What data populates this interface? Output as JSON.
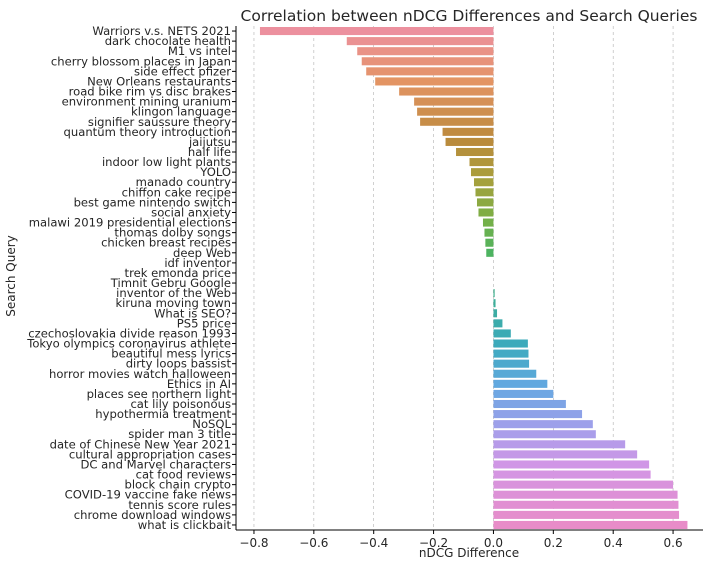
{
  "chart_data": {
    "type": "bar",
    "orientation": "horizontal",
    "title": "Correlation between nDCG Differences and Search Queries",
    "xlabel": "nDCG Difference",
    "ylabel": "Search Query",
    "xlim": [
      -0.86,
      0.7
    ],
    "xticks": [
      -0.8,
      -0.6,
      -0.4,
      -0.2,
      0.0,
      0.2,
      0.4,
      0.6
    ],
    "xtick_labels": [
      "−0.8",
      "−0.6",
      "−0.4",
      "−0.2",
      "0.0",
      "0.2",
      "0.4",
      "0.6"
    ],
    "grid": "x-dashed",
    "palette": "husl-gradient",
    "categories": [
      "Warriors v.s. NETS 2021",
      "dark chocolate health",
      "M1 vs intel",
      "cherry blossom places in Japan",
      "side effect pfizer",
      "New Orleans restaurants",
      "road bike rim vs disc brakes",
      "environment mining uranium",
      "klingon language",
      "signifier saussure theory",
      "quantum theory introduction",
      "jaijutsu",
      "half life",
      "indoor low light plants",
      "YOLO",
      "manado country",
      "chiffon cake recipe",
      "best game nintendo switch",
      "social anxiety",
      "malawi 2019 presidential elections",
      "thomas dolby songs",
      "chicken breast recipes",
      "deep Web",
      "idf inventor",
      "trek emonda price",
      "Timnit Gebru Google",
      "inventor of the Web",
      "kiruna moving town",
      "What is SEO?",
      "PS5 price",
      "czechoslovakia divide reason 1993",
      "Tokyo olympics coronavirus athlete",
      "beautiful mess lyrics",
      "dirty loops bassist",
      "horror movies watch halloween",
      "Ethics in AI",
      "places see northern light",
      "cat lily poisonous",
      "hypothermia treatment",
      "NoSQL",
      "spider man 3 title",
      "date of Chinese New Year 2021",
      "cultural appropriation cases",
      "DC and Marvel characters",
      "cat food reviews",
      "block chain crypto",
      "COVID-19 vaccine fake news",
      "tennis score rules",
      "chrome download windows",
      "what is clickbait"
    ],
    "values": [
      -0.78,
      -0.49,
      -0.455,
      -0.44,
      -0.425,
      -0.395,
      -0.315,
      -0.265,
      -0.255,
      -0.245,
      -0.17,
      -0.16,
      -0.125,
      -0.08,
      -0.075,
      -0.065,
      -0.06,
      -0.055,
      -0.05,
      -0.035,
      -0.03,
      -0.027,
      -0.024,
      0.0,
      0.0,
      0.0,
      0.004,
      0.007,
      0.012,
      0.03,
      0.058,
      0.115,
      0.117,
      0.119,
      0.143,
      0.18,
      0.2,
      0.242,
      0.296,
      0.332,
      0.342,
      0.44,
      0.48,
      0.52,
      0.525,
      0.6,
      0.615,
      0.618,
      0.62,
      0.648
    ]
  }
}
